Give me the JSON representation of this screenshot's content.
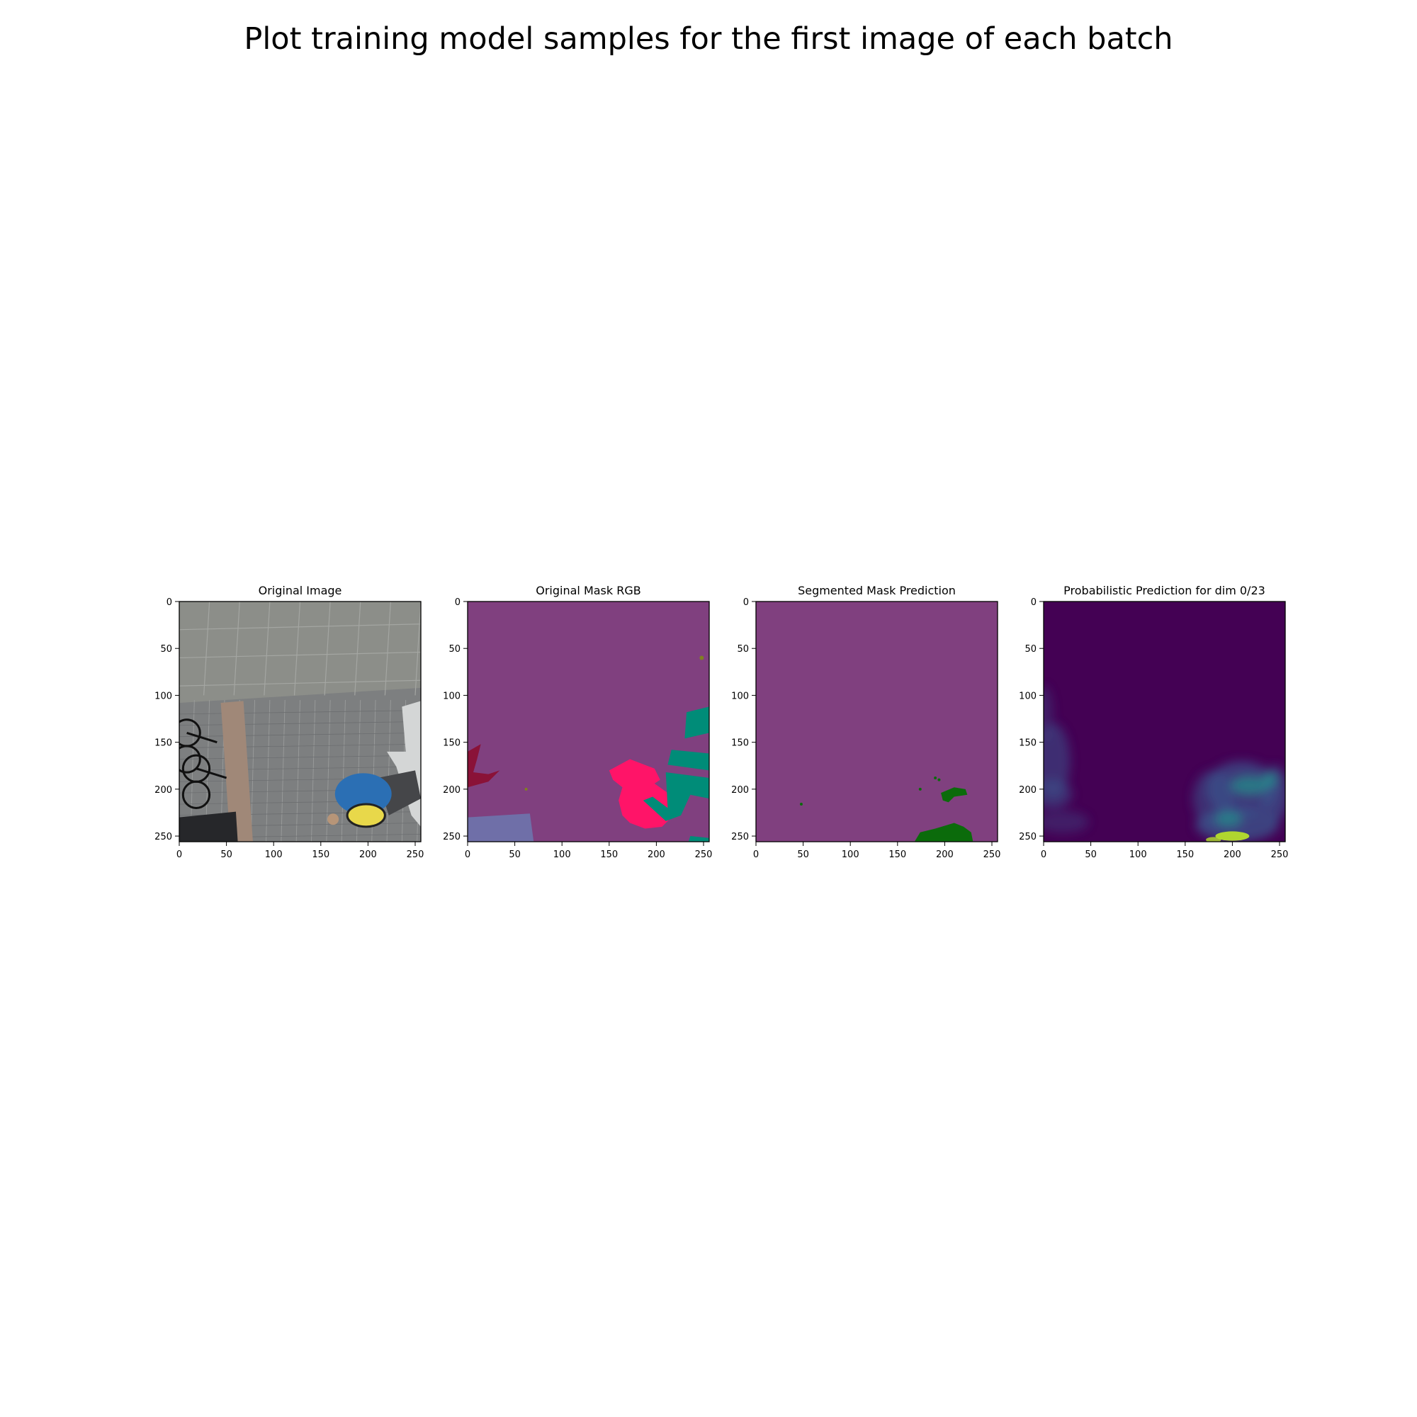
{
  "figure": {
    "suptitle": "Plot training model samples for the first image of each batch"
  },
  "chart_data": [
    {
      "type": "image",
      "title": "Original Image",
      "xlabel": "",
      "ylabel": "",
      "xlim": [
        0,
        256
      ],
      "ylim": [
        256,
        0
      ],
      "xticks": [
        0,
        50,
        100,
        150,
        200,
        250
      ],
      "yticks": [
        0,
        50,
        100,
        150,
        200,
        250
      ],
      "content": "aerial photo: paved plaza, bicycles on left, cyclist with helmet lower right",
      "colors": {
        "pavement_top": "#8c8e89",
        "pavement_bottom": "#7d7f80",
        "stripe": "#a08878",
        "shirt": "#2b6fb4"
      }
    },
    {
      "type": "image",
      "title": "Original Mask RGB",
      "xlabel": "",
      "ylabel": "",
      "xlim": [
        0,
        256
      ],
      "ylim": [
        256,
        0
      ],
      "xticks": [
        0,
        50,
        100,
        150,
        200,
        250
      ],
      "yticks": [
        0,
        50,
        100,
        150,
        200,
        250
      ],
      "colors": {
        "background": "#80407f",
        "person": "#ff1468",
        "bicycle": "#8a1238",
        "object": "#008c78",
        "ground_patch": "#6f6fa8"
      }
    },
    {
      "type": "image",
      "title": "Segmented Mask Prediction",
      "xlabel": "",
      "ylabel": "",
      "xlim": [
        0,
        256
      ],
      "ylim": [
        256,
        0
      ],
      "xticks": [
        0,
        50,
        100,
        150,
        200,
        250
      ],
      "yticks": [
        0,
        50,
        100,
        150,
        200,
        250
      ],
      "colors": {
        "background": "#80407f",
        "prediction": "#0b6b0b"
      }
    },
    {
      "type": "heatmap",
      "title": "Probabilistic Prediction for dim 0/23",
      "xlabel": "",
      "ylabel": "",
      "xlim": [
        0,
        256
      ],
      "ylim": [
        256,
        0
      ],
      "xticks": [
        0,
        50,
        100,
        150,
        200,
        250
      ],
      "yticks": [
        0,
        50,
        100,
        150,
        200,
        250
      ],
      "colormap": "viridis",
      "colors": {
        "low": "#440154",
        "mid": "#3b528b",
        "teal": "#21918c",
        "high": "#b5de2b"
      }
    }
  ]
}
